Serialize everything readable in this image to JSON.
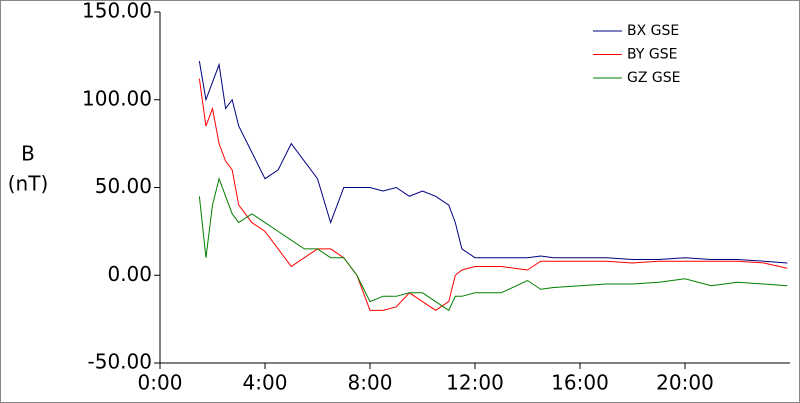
{
  "chart_data": {
    "type": "line",
    "y_label": [
      "B",
      "(nT)"
    ],
    "x": [
      1.5,
      1.75,
      2.0,
      2.25,
      2.5,
      2.75,
      3,
      3.5,
      4,
      4.5,
      5,
      5.5,
      6,
      6.5,
      7,
      7.5,
      8,
      8.5,
      9,
      9.5,
      10,
      10.5,
      11,
      11.25,
      11.5,
      12,
      13,
      14,
      14.5,
      15,
      16,
      17,
      18,
      19,
      20,
      21,
      22,
      23,
      23.9
    ],
    "series": [
      {
        "name": "BX GSE",
        "color": "#000080",
        "values": [
          122,
          100,
          110,
          120,
          95,
          100,
          85,
          70,
          55,
          60,
          75,
          65,
          55,
          30,
          50,
          50,
          50,
          48,
          50,
          45,
          48,
          45,
          40,
          30,
          15,
          10,
          10,
          10,
          11,
          10,
          10,
          10,
          9,
          9,
          10,
          9,
          9,
          8,
          7
        ]
      },
      {
        "name": "BY GSE",
        "color": "#ff0000",
        "values": [
          112,
          85,
          95,
          75,
          65,
          60,
          40,
          30,
          25,
          15,
          5,
          10,
          15,
          15,
          10,
          0,
          -20,
          -20,
          -18,
          -10,
          -15,
          -20,
          -15,
          0,
          3,
          5,
          5,
          3,
          8,
          8,
          8,
          8,
          7,
          8,
          8,
          8,
          8,
          7,
          4
        ]
      },
      {
        "name": "GZ GSE",
        "color": "#008000",
        "values": [
          45,
          10,
          40,
          55,
          45,
          35,
          30,
          35,
          30,
          25,
          20,
          15,
          15,
          10,
          10,
          0,
          -15,
          -12,
          -12,
          -10,
          -10,
          -15,
          -20,
          -12,
          -12,
          -10,
          -10,
          -3,
          -8,
          -7,
          -6,
          -5,
          -5,
          -4,
          -2,
          -6,
          -4,
          -5,
          -6
        ]
      }
    ],
    "xlim": [
      0,
      24
    ],
    "xticks": [
      {
        "value": 0,
        "label": "0:00"
      },
      {
        "value": 4,
        "label": "4:00"
      },
      {
        "value": 8,
        "label": "8:00"
      },
      {
        "value": 12,
        "label": "12:00"
      },
      {
        "value": 16,
        "label": "16:00"
      },
      {
        "value": 20,
        "label": "20:00"
      }
    ],
    "ylim": [
      -50,
      150
    ],
    "yticks": [
      {
        "value": -50,
        "label": "-50.00"
      },
      {
        "value": 0,
        "label": "0.00"
      },
      {
        "value": 50,
        "label": "50.00"
      },
      {
        "value": 100,
        "label": "100.00"
      },
      {
        "value": 150,
        "label": "150.00"
      }
    ],
    "legend": "upper right"
  }
}
